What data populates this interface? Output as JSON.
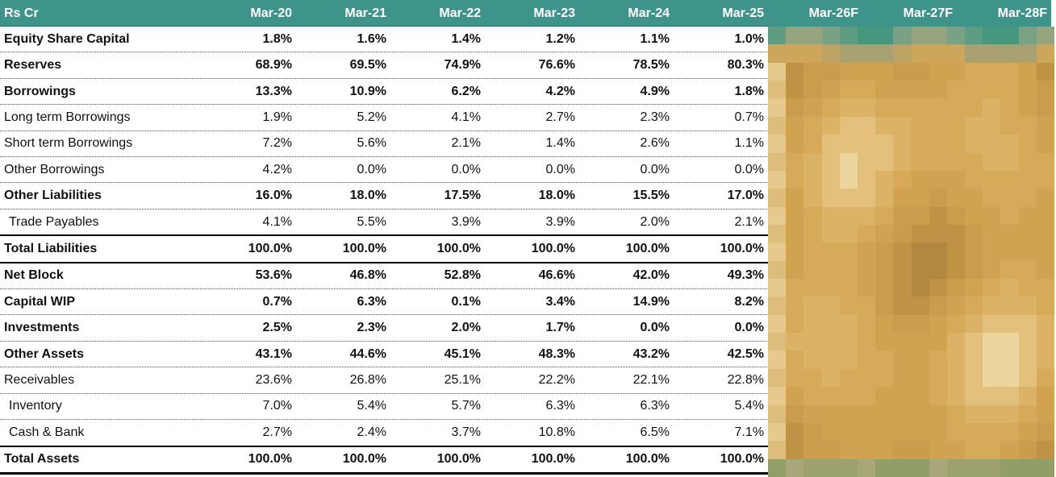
{
  "chart_data": {
    "type": "table",
    "unit_label": "Rs Cr",
    "columns": [
      "Mar-20",
      "Mar-21",
      "Mar-22",
      "Mar-23",
      "Mar-24",
      "Mar-25",
      "Mar-26F",
      "Mar-27F",
      "Mar-28F"
    ],
    "visible_value_columns": 6,
    "forecast_columns_obscured": [
      "Mar-26F",
      "Mar-27F",
      "Mar-28F"
    ],
    "rows": [
      {
        "label": "Equity Share Capital",
        "bold": true,
        "indent": false,
        "total": false,
        "values": [
          "1.8%",
          "1.6%",
          "1.4%",
          "1.2%",
          "1.1%",
          "1.0%"
        ]
      },
      {
        "label": "Reserves",
        "bold": true,
        "indent": false,
        "total": false,
        "values": [
          "68.9%",
          "69.5%",
          "74.9%",
          "76.6%",
          "78.5%",
          "80.3%"
        ]
      },
      {
        "label": "Borrowings",
        "bold": true,
        "indent": false,
        "total": false,
        "values": [
          "13.3%",
          "10.9%",
          "6.2%",
          "4.2%",
          "4.9%",
          "1.8%"
        ]
      },
      {
        "label": "Long term Borrowings",
        "bold": false,
        "indent": false,
        "total": false,
        "values": [
          "1.9%",
          "5.2%",
          "4.1%",
          "2.7%",
          "2.3%",
          "0.7%"
        ]
      },
      {
        "label": "Short term Borrowings",
        "bold": false,
        "indent": false,
        "total": false,
        "values": [
          "7.2%",
          "5.6%",
          "2.1%",
          "1.4%",
          "2.6%",
          "1.1%"
        ]
      },
      {
        "label": "Other Borrowings",
        "bold": false,
        "indent": false,
        "total": false,
        "values": [
          "4.2%",
          "0.0%",
          "0.0%",
          "0.0%",
          "0.0%",
          "0.0%"
        ]
      },
      {
        "label": "Other Liabilities",
        "bold": true,
        "indent": false,
        "total": false,
        "values": [
          "16.0%",
          "18.0%",
          "17.5%",
          "18.0%",
          "15.5%",
          "17.0%"
        ]
      },
      {
        "label": "Trade Payables",
        "bold": false,
        "indent": true,
        "total": false,
        "values": [
          "4.1%",
          "5.5%",
          "3.9%",
          "3.9%",
          "2.0%",
          "2.1%"
        ]
      },
      {
        "label": "Total Liabilities",
        "bold": true,
        "indent": false,
        "total": true,
        "values": [
          "100.0%",
          "100.0%",
          "100.0%",
          "100.0%",
          "100.0%",
          "100.0%"
        ]
      },
      {
        "label": "Net Block",
        "bold": true,
        "indent": false,
        "total": false,
        "values": [
          "53.6%",
          "46.8%",
          "52.8%",
          "46.6%",
          "42.0%",
          "49.3%"
        ]
      },
      {
        "label": "Capital WIP",
        "bold": true,
        "indent": false,
        "total": false,
        "values": [
          "0.7%",
          "6.3%",
          "0.1%",
          "3.4%",
          "14.9%",
          "8.2%"
        ]
      },
      {
        "label": "Investments",
        "bold": true,
        "indent": false,
        "total": false,
        "values": [
          "2.5%",
          "2.3%",
          "2.0%",
          "1.7%",
          "0.0%",
          "0.0%"
        ]
      },
      {
        "label": "Other Assets",
        "bold": true,
        "indent": false,
        "total": false,
        "values": [
          "43.1%",
          "44.6%",
          "45.1%",
          "48.3%",
          "43.2%",
          "42.5%"
        ]
      },
      {
        "label": "Receivables",
        "bold": false,
        "indent": false,
        "total": false,
        "values": [
          "23.6%",
          "26.8%",
          "25.1%",
          "22.2%",
          "22.1%",
          "22.8%"
        ]
      },
      {
        "label": "Inventory",
        "bold": false,
        "indent": true,
        "total": false,
        "values": [
          "7.0%",
          "5.4%",
          "5.7%",
          "6.3%",
          "6.3%",
          "5.4%"
        ]
      },
      {
        "label": "Cash & Bank",
        "bold": false,
        "indent": true,
        "total": false,
        "values": [
          "2.7%",
          "2.4%",
          "3.7%",
          "10.8%",
          "6.5%",
          "7.1%"
        ]
      },
      {
        "label": "Total Assets",
        "bold": true,
        "indent": false,
        "total": true,
        "values": [
          "100.0%",
          "100.0%",
          "100.0%",
          "100.0%",
          "100.0%",
          "100.0%"
        ]
      }
    ]
  },
  "colors": {
    "header_bg": "#3e948a",
    "header_text": "#ffffff",
    "body_text": "#111111",
    "dotted_line": "#4a4a4a",
    "solid_line": "#000000",
    "blur_gold_palette": [
      "#ecd49e",
      "#e3c17c",
      "#dcb366",
      "#d6aa58",
      "#d1a350",
      "#ca9c4b",
      "#c09246",
      "#b28741"
    ],
    "blur_teal_palette": [
      "#47977f",
      "#5f9d82",
      "#7ba184",
      "#94a47c"
    ],
    "blur_transition_palette": [
      "#a8a171",
      "#bda364",
      "#cba65b"
    ],
    "blur_olive_palette": [
      "#9ba26f",
      "#a7a77a",
      "#919e68"
    ],
    "blur_edge_palette": [
      "#e6c98e",
      "#ddbd7b"
    ]
  }
}
